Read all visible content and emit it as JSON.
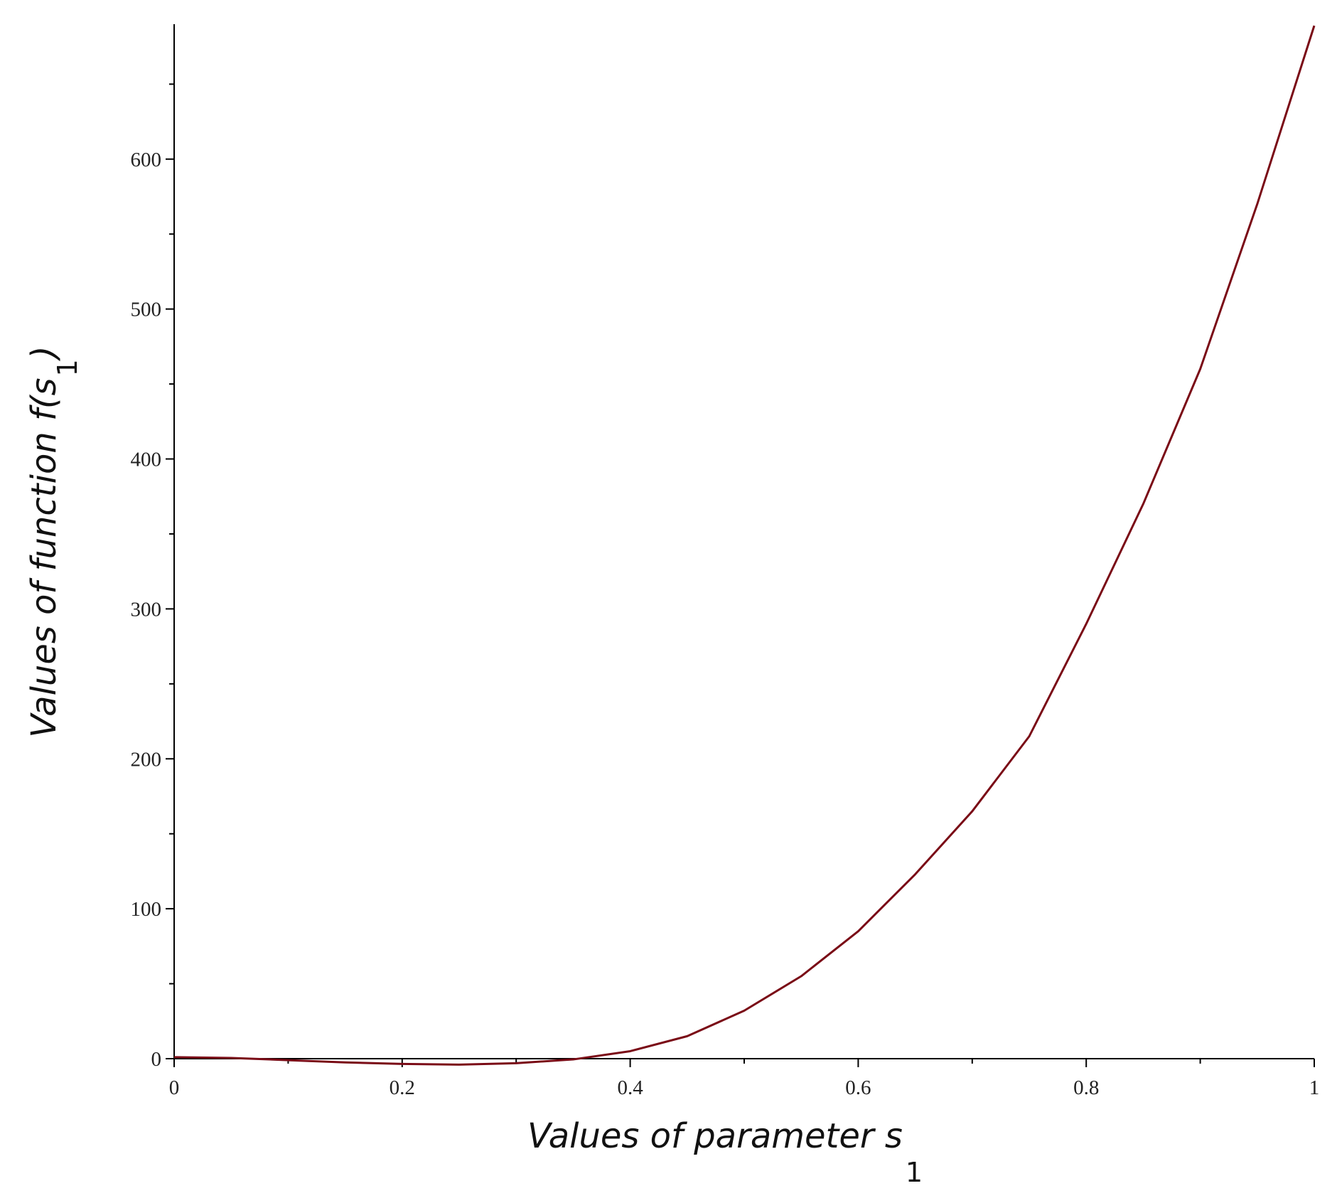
{
  "chart_data": {
    "type": "line",
    "xlabel": {
      "text": "Values of parameter s",
      "subscript": "1"
    },
    "ylabel": {
      "text": "Values of function f(s",
      "subscript": "1",
      "suffix": ")"
    },
    "x": [
      0,
      0.05,
      0.1,
      0.15,
      0.2,
      0.25,
      0.3,
      0.35,
      0.4,
      0.45,
      0.5,
      0.55,
      0.6,
      0.65,
      0.7,
      0.75,
      0.8,
      0.85,
      0.9,
      0.95,
      1
    ],
    "series": [
      {
        "color": "#7a0b16",
        "values": [
          1,
          0.5,
          -1,
          -2.5,
          -3.5,
          -4,
          -3,
          -0.5,
          5,
          15,
          32,
          55,
          85,
          123,
          165,
          215,
          290,
          370,
          460,
          570,
          689
        ]
      }
    ],
    "xlim": [
      0,
      1
    ],
    "ylim": [
      0,
      690
    ],
    "xticks": [
      0,
      0.2,
      0.4,
      0.6,
      0.8,
      1
    ],
    "yticks": [
      0,
      100,
      200,
      300,
      400,
      500,
      600
    ],
    "xminorticks": [
      0.1,
      0.3,
      0.5,
      0.7,
      0.9
    ],
    "yminorticks": [
      50,
      150,
      250,
      350,
      450,
      550,
      650
    ],
    "grid": false
  }
}
